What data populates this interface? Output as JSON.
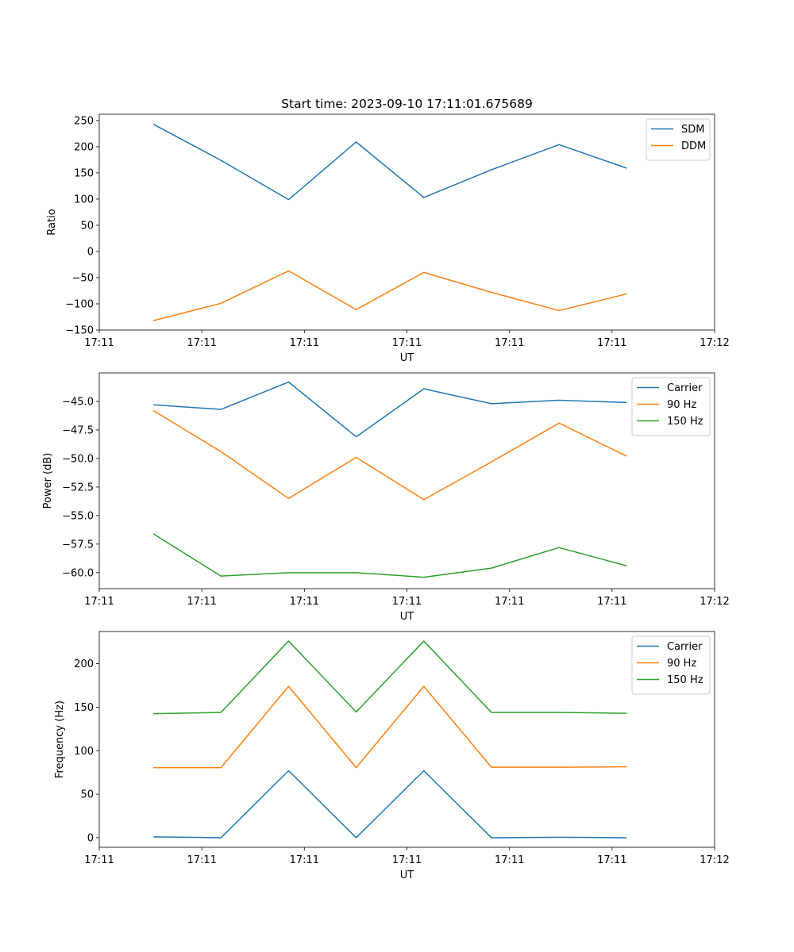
{
  "figure_title": "Start time: 2023-09-10 17:11:01.675689",
  "chart_data": [
    {
      "type": "line",
      "title": "Start time: 2023-09-10 17:11:01.675689",
      "xlabel": "UT",
      "ylabel": "Ratio",
      "x": [
        1,
        2,
        3,
        4,
        5,
        6,
        7,
        8
      ],
      "xlim": [
        0.2,
        9.3
      ],
      "xticks": [
        0.2,
        1.717,
        3.233,
        4.75,
        6.267,
        7.783,
        9.3
      ],
      "xtick_labels": [
        "17:11",
        "17:11",
        "17:11",
        "17:11",
        "17:11",
        "17:11",
        "17:12"
      ],
      "ylim": [
        -150,
        262
      ],
      "yticks": [
        -150,
        -100,
        -50,
        0,
        50,
        100,
        150,
        200,
        250
      ],
      "ytick_labels": [
        "−150",
        "−100",
        "−50",
        "0",
        "50",
        "100",
        "150",
        "200",
        "250"
      ],
      "legend_position": "upper-right",
      "series": [
        {
          "name": "SDM",
          "color": "#1f77b4",
          "values": [
            243,
            174,
            99,
            209,
            103,
            156,
            204,
            159
          ]
        },
        {
          "name": "DDM",
          "color": "#ff7f0e",
          "values": [
            -132,
            -99,
            -37,
            -111,
            -40,
            -78,
            -113,
            -81
          ]
        }
      ]
    },
    {
      "type": "line",
      "title": "",
      "xlabel": "UT",
      "ylabel": "Power (dB)",
      "x": [
        1,
        2,
        3,
        4,
        5,
        6,
        7,
        8
      ],
      "xlim": [
        0.2,
        9.3
      ],
      "xticks": [
        0.2,
        1.717,
        3.233,
        4.75,
        6.267,
        7.783,
        9.3
      ],
      "xtick_labels": [
        "17:11",
        "17:11",
        "17:11",
        "17:11",
        "17:11",
        "17:11",
        "17:12"
      ],
      "ylim": [
        -61.4,
        -42.5
      ],
      "yticks": [
        -60,
        -57.5,
        -55,
        -52.5,
        -50,
        -47.5,
        -45
      ],
      "ytick_labels": [
        "−60.0",
        "−57.5",
        "−55.0",
        "−52.5",
        "−50.0",
        "−47.5",
        "−45.0"
      ],
      "legend_position": "upper-right",
      "series": [
        {
          "name": "Carrier",
          "color": "#1f77b4",
          "values": [
            -45.3,
            -45.7,
            -43.3,
            -48.1,
            -43.9,
            -45.2,
            -44.9,
            -45.1
          ]
        },
        {
          "name": "90 Hz",
          "color": "#ff7f0e",
          "values": [
            -45.8,
            -49.4,
            -53.5,
            -49.9,
            -53.6,
            -50.3,
            -46.9,
            -49.8
          ]
        },
        {
          "name": "150 Hz",
          "color": "#2ca02c",
          "values": [
            -56.6,
            -60.3,
            -60.0,
            -60.0,
            -60.4,
            -59.6,
            -57.8,
            -59.4
          ]
        }
      ]
    },
    {
      "type": "line",
      "title": "",
      "xlabel": "UT",
      "ylabel": "Frequency (Hz)",
      "x": [
        1,
        2,
        3,
        4,
        5,
        6,
        7,
        8
      ],
      "xlim": [
        0.2,
        9.3
      ],
      "xticks": [
        0.2,
        1.717,
        3.233,
        4.75,
        6.267,
        7.783,
        9.3
      ],
      "xtick_labels": [
        "17:11",
        "17:11",
        "17:11",
        "17:11",
        "17:11",
        "17:11",
        "17:12"
      ],
      "ylim": [
        -11,
        237
      ],
      "yticks": [
        0,
        50,
        100,
        150,
        200
      ],
      "ytick_labels": [
        "0",
        "50",
        "100",
        "150",
        "200"
      ],
      "legend_position": "upper-right",
      "series": [
        {
          "name": "Carrier",
          "color": "#1f77b4",
          "values": [
            1,
            0,
            77,
            0,
            77,
            0,
            0.5,
            0
          ]
        },
        {
          "name": "90 Hz",
          "color": "#ff7f0e",
          "values": [
            80.5,
            80.5,
            174,
            80.5,
            174,
            81,
            81,
            81.5
          ]
        },
        {
          "name": "150 Hz",
          "color": "#2ca02c",
          "values": [
            142.5,
            144,
            226,
            144.5,
            226,
            144,
            144,
            143
          ]
        }
      ]
    }
  ]
}
